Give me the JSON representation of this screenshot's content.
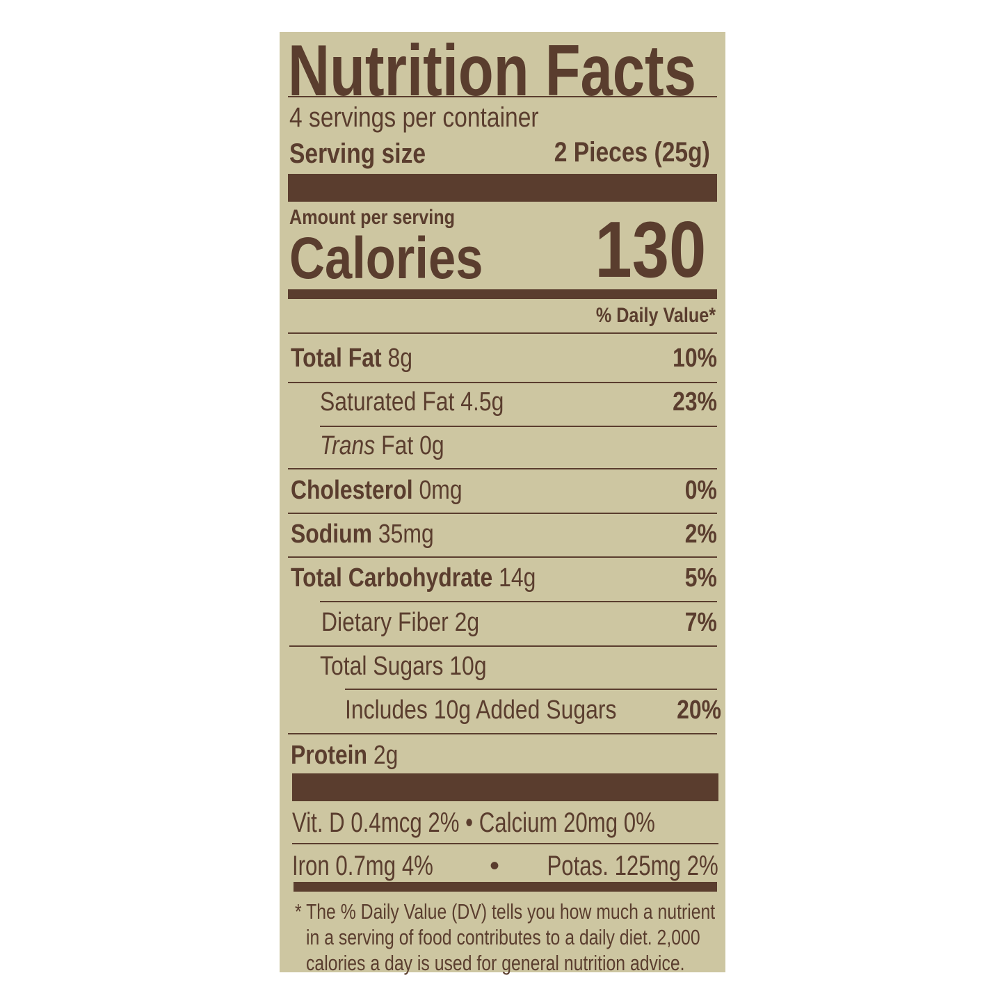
{
  "label": {
    "title": "Nutrition Facts",
    "servings_per_container": "4 servings per container",
    "serving_size_label": "Serving size",
    "serving_size_value": "2 Pieces (25g)",
    "amount_per_serving": "Amount per serving",
    "calories_label": "Calories",
    "calories_value": "130",
    "daily_value_header": "% Daily Value*",
    "nutrients": [
      {
        "name": "Total Fat",
        "amount": "8g",
        "dv": "10%"
      },
      {
        "name": "Saturated Fat",
        "amount": "4.5g",
        "dv": "23%"
      },
      {
        "name": "Trans",
        "amount": "Fat 0g",
        "dv": ""
      },
      {
        "name": "Cholesterol",
        "amount": "0mg",
        "dv": "0%"
      },
      {
        "name": "Sodium",
        "amount": "35mg",
        "dv": "2%"
      },
      {
        "name": "Total Carbohydrate",
        "amount": "14g",
        "dv": "5%"
      },
      {
        "name": "Dietary Fiber",
        "amount": "2g",
        "dv": "7%"
      },
      {
        "name": "Total Sugars",
        "amount": "10g",
        "dv": ""
      },
      {
        "name": "Includes 10g Added Sugars",
        "amount": "",
        "dv": "20%"
      },
      {
        "name": "Protein",
        "amount": "2g",
        "dv": ""
      }
    ],
    "vitamins_row1": "Vit. D 0.4mcg 2% • Calcium 20mg 0%",
    "vitamins_row2_left": "Iron 0.7mg 4%",
    "vitamins_row2_bullet": "•",
    "vitamins_row2_right": "Potas. 125mg 2%",
    "footnote": [
      "* The % Daily Value (DV) tells you how much a nutrient",
      "in a serving of food contributes to a daily diet. 2,000",
      "calories a day is used for general nutrition advice."
    ]
  },
  "colors": {
    "background": "#cdc6a1",
    "ink": "#5a3d2e"
  }
}
